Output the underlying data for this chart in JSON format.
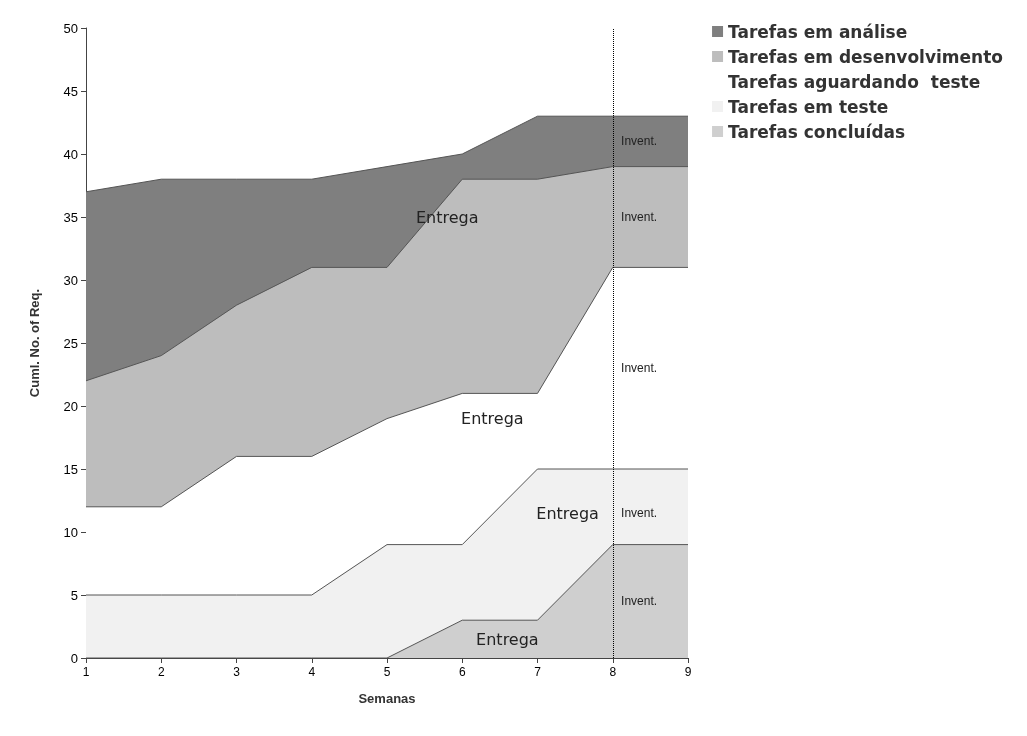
{
  "chart_data": {
    "type": "area",
    "stacked": true,
    "xlabel": "Semanas",
    "ylabel": "Cuml. No. of Req.",
    "x": [
      1,
      2,
      3,
      4,
      5,
      6,
      7,
      8,
      9
    ],
    "series": [
      {
        "name": "Tarefas concluídas",
        "color": "#cfcfcf",
        "values": [
          0,
          0,
          0,
          0,
          0,
          3,
          3,
          9,
          9
        ]
      },
      {
        "name": "Tarefas em teste",
        "color": "#f1f1f1",
        "values": [
          5,
          5,
          5,
          5,
          9,
          6,
          12,
          6,
          6
        ]
      },
      {
        "name": "Tarefas aguardando  teste",
        "color": "#ffffff",
        "values": [
          7,
          7,
          11,
          11,
          10,
          12,
          6,
          16,
          16
        ]
      },
      {
        "name": "Tarefas em desenvolvimento",
        "color": "#bdbdbd",
        "values": [
          10,
          12,
          12,
          15,
          12,
          17,
          17,
          8,
          8
        ]
      },
      {
        "name": "Tarefas em análise",
        "color": "#7f7f7f",
        "values": [
          15,
          14,
          10,
          7,
          8,
          2,
          5,
          4,
          4
        ]
      }
    ],
    "xlim": [
      1,
      9
    ],
    "xticks": [
      1,
      2,
      3,
      4,
      5,
      6,
      7,
      8,
      9
    ],
    "ylim": [
      0,
      50
    ],
    "yticks": [
      0,
      5,
      10,
      15,
      20,
      25,
      30,
      35,
      40,
      45,
      50
    ],
    "grid": false,
    "legend": "top right",
    "ref_lines": [
      {
        "axis": "x",
        "value": 8,
        "line_style": "dotted",
        "color": "#000000"
      }
    ],
    "annotations": [
      "Entrega",
      "Entrega",
      "Entrega",
      "Entrega",
      "Invent.",
      "Invent.",
      "Invent.",
      "Invent.",
      "Invent."
    ]
  }
}
